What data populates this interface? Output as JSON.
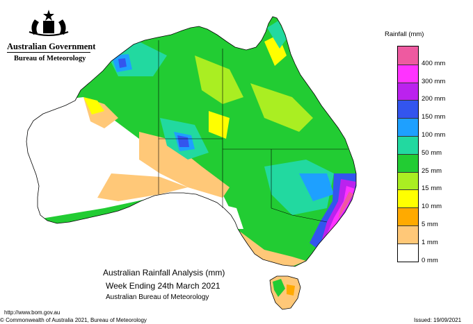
{
  "header": {
    "government": "Australian Government",
    "agency": "Bureau of Meteorology"
  },
  "legend": {
    "title": "Rainfall (mm)",
    "bands": [
      {
        "label": "",
        "color": "#ee5aa0"
      },
      {
        "label": "400 mm",
        "color": "#ff33ff"
      },
      {
        "label": "300 mm",
        "color": "#bb22ee"
      },
      {
        "label": "200 mm",
        "color": "#3355ee"
      },
      {
        "label": "150 mm",
        "color": "#1ea0ff"
      },
      {
        "label": "100 mm",
        "color": "#22d9a0"
      },
      {
        "label": "50 mm",
        "color": "#22cc33"
      },
      {
        "label": "25 mm",
        "color": "#aaee22"
      },
      {
        "label": "15 mm",
        "color": "#ffff00"
      },
      {
        "label": "10 mm",
        "color": "#ffaa00"
      },
      {
        "label": "5 mm",
        "color": "#ffc878"
      },
      {
        "label": "1 mm",
        "color": "#ffffff"
      }
    ],
    "bottom_label": "0 mm"
  },
  "map": {
    "title_line1": "Australian Rainfall Analysis (mm)",
    "title_line2": "Week Ending 24th March 2021",
    "title_line3": "Australian Bureau of Meteorology",
    "region": "Australia",
    "base_color": "#22cc33",
    "outline_color": "#000000"
  },
  "footer": {
    "url": "http://www.bom.gov.au",
    "copyright": "© Commonwealth of Australia 2021, Bureau of Meteorology",
    "issued": "Issued: 19/09/2021"
  }
}
